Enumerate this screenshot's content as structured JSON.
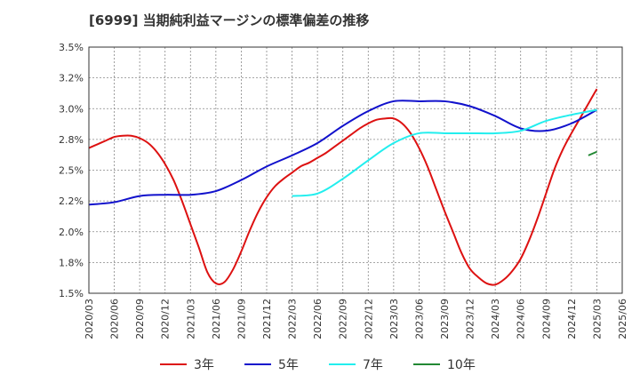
{
  "chart_data": {
    "type": "line",
    "title": "[6999]  当期純利益マージンの標準偏差の推移",
    "xlabel": "",
    "ylabel": "",
    "x_ticks": [
      "2020/03",
      "2020/06",
      "2020/09",
      "2020/12",
      "2021/03",
      "2021/06",
      "2021/09",
      "2021/12",
      "2022/03",
      "2022/06",
      "2022/09",
      "2022/12",
      "2023/03",
      "2023/06",
      "2023/09",
      "2023/12",
      "2024/03",
      "2024/06",
      "2024/09",
      "2024/12",
      "2025/03",
      "2025/06"
    ],
    "y_ticks": [
      "1.5%",
      "1.8%",
      "2.0%",
      "2.2%",
      "2.5%",
      "2.8%",
      "3.0%",
      "3.2%",
      "3.5%"
    ],
    "ylim": [
      1.5,
      3.5
    ],
    "grid": true,
    "legend_position": "bottom",
    "series": [
      {
        "name": "3年",
        "color": "#dd1111",
        "x": [
          "2020/03",
          "2020/04",
          "2020/05",
          "2020/06",
          "2020/07",
          "2020/08",
          "2020/09",
          "2020/10",
          "2020/11",
          "2020/12",
          "2021/01",
          "2021/02",
          "2021/03",
          "2021/04",
          "2021/05",
          "2021/06",
          "2021/07",
          "2021/08",
          "2021/09",
          "2021/10",
          "2021/11",
          "2021/12",
          "2022/01",
          "2022/02",
          "2022/03",
          "2022/04",
          "2022/05",
          "2022/06",
          "2022/07",
          "2022/08",
          "2022/09",
          "2022/10",
          "2022/11",
          "2022/12",
          "2023/01",
          "2023/02",
          "2023/03",
          "2023/04",
          "2023/05",
          "2023/06",
          "2023/07",
          "2023/08",
          "2023/09",
          "2023/10",
          "2023/11",
          "2023/12",
          "2024/01",
          "2024/02",
          "2024/03",
          "2024/04",
          "2024/05",
          "2024/06",
          "2024/07",
          "2024/08",
          "2024/09",
          "2024/10",
          "2024/11",
          "2024/12",
          "2025/01",
          "2025/02",
          "2025/03"
        ],
        "values": [
          2.68,
          2.71,
          2.74,
          2.77,
          2.78,
          2.78,
          2.76,
          2.72,
          2.65,
          2.55,
          2.42,
          2.25,
          2.06,
          1.87,
          1.67,
          1.58,
          1.59,
          1.69,
          1.84,
          2.01,
          2.16,
          2.28,
          2.37,
          2.43,
          2.48,
          2.53,
          2.56,
          2.6,
          2.64,
          2.69,
          2.74,
          2.79,
          2.84,
          2.88,
          2.91,
          2.92,
          2.92,
          2.88,
          2.8,
          2.68,
          2.53,
          2.35,
          2.17,
          2.0,
          1.83,
          1.7,
          1.63,
          1.58,
          1.57,
          1.61,
          1.68,
          1.78,
          1.93,
          2.11,
          2.31,
          2.51,
          2.67,
          2.8,
          2.92,
          3.04,
          3.16
        ]
      },
      {
        "name": "5年",
        "color": "#1111cc",
        "x": [
          "2020/03",
          "2020/06",
          "2020/09",
          "2020/12",
          "2021/03",
          "2021/06",
          "2021/09",
          "2021/12",
          "2022/03",
          "2022/06",
          "2022/09",
          "2022/12",
          "2023/03",
          "2023/06",
          "2023/09",
          "2023/12",
          "2024/03",
          "2024/06",
          "2024/09",
          "2024/12",
          "2025/03"
        ],
        "values": [
          2.22,
          2.24,
          2.29,
          2.3,
          2.3,
          2.33,
          2.42,
          2.53,
          2.62,
          2.72,
          2.86,
          2.98,
          3.06,
          3.06,
          3.06,
          3.02,
          2.94,
          2.84,
          2.82,
          2.88,
          2.99
        ]
      },
      {
        "name": "7年",
        "color": "#22eeee",
        "x": [
          "2022/03",
          "2022/06",
          "2022/09",
          "2022/12",
          "2023/03",
          "2023/06",
          "2023/09",
          "2023/12",
          "2024/03",
          "2024/06",
          "2024/09",
          "2024/12",
          "2025/03"
        ],
        "values": [
          2.29,
          2.31,
          2.43,
          2.58,
          2.72,
          2.8,
          2.8,
          2.8,
          2.8,
          2.82,
          2.9,
          2.95,
          2.99
        ]
      },
      {
        "name": "10年",
        "color": "#228833",
        "x": [
          "2025/02",
          "2025/03"
        ],
        "values": [
          2.62,
          2.65
        ]
      }
    ]
  }
}
